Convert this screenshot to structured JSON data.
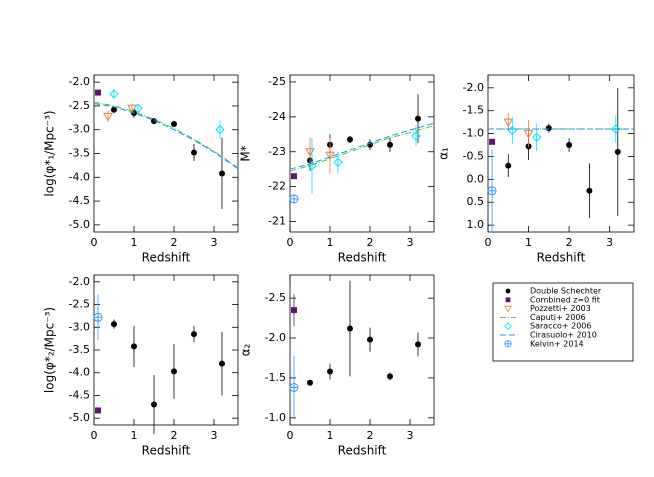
{
  "chart_data": [
    {
      "type": "scatter",
      "xlabel": "Redshift",
      "ylabel": "log(φ*₁/Mpc⁻³)",
      "xlim": [
        0,
        3.6
      ],
      "xticks": [
        0,
        1,
        2,
        3
      ],
      "ylim": [
        -5.15,
        -1.85
      ],
      "yticks": [
        {
          "value": -2,
          "label": "-2.0"
        },
        -2.5,
        {
          "value": -3,
          "label": "-3.0"
        },
        -3.5,
        {
          "value": -4,
          "label": "-4.0"
        },
        -4.5,
        {
          "value": -5,
          "label": "-5.0"
        }
      ],
      "series": [
        {
          "name": "Double Schechter",
          "color": "#000000",
          "marker": "circle",
          "x": [
            0.5,
            1,
            1.5,
            2,
            2.5,
            3.2
          ],
          "values": [
            -2.58,
            -2.65,
            -2.82,
            -2.88,
            -3.48,
            -3.92
          ],
          "errors": [
            0.05,
            0.1,
            0.05,
            0.05,
            0.18,
            0.75
          ]
        },
        {
          "name": "Combined z=0 fit",
          "color": "#5b1a6e",
          "marker": "square",
          "x": [
            0.1
          ],
          "values": [
            -2.22
          ],
          "errors": [
            0.03
          ]
        },
        {
          "name": "Pozzetti+ 2003",
          "color": "#f07f3c",
          "marker": "triangle-down",
          "x": [
            0.35,
            0.95
          ],
          "values": [
            -2.72,
            -2.55
          ],
          "errors": [
            0.12,
            0.1
          ]
        },
        {
          "name": "Caputi+ 2006",
          "color": "#44cc44",
          "marker": "dashdot",
          "x": [
            0,
            0.5,
            1,
            1.5,
            2,
            2.5,
            3,
            3.6
          ],
          "values": [
            -2.42,
            -2.5,
            -2.62,
            -2.78,
            -2.97,
            -3.2,
            -3.45,
            -3.8
          ]
        },
        {
          "name": "Saracco+ 2006",
          "color": "#00e5ff",
          "marker": "diamond",
          "x": [
            0.5,
            1.1,
            3.15
          ],
          "values": [
            -2.25,
            -2.55,
            -3.0
          ],
          "errors": [
            0.1,
            0.05,
            0.2
          ]
        },
        {
          "name": "Cirasuolo+ 2010",
          "color": "#1e90ff",
          "marker": "dashed",
          "x": [
            0,
            0.5,
            1,
            1.5,
            2,
            2.5,
            3,
            3.6
          ],
          "values": [
            -2.45,
            -2.52,
            -2.65,
            -2.8,
            -3.0,
            -3.22,
            -3.47,
            -3.82
          ]
        }
      ]
    },
    {
      "type": "scatter",
      "xlabel": "Redshift",
      "ylabel": "M*",
      "xlim": [
        0,
        3.6
      ],
      "xticks": [
        0,
        1,
        2,
        3
      ],
      "ylim": [
        -20.7,
        -25.2
      ],
      "yticks": [
        -25,
        -24,
        -23,
        -22,
        -21
      ],
      "series": [
        {
          "name": "Double Schechter",
          "color": "#000000",
          "marker": "circle",
          "x": [
            0.5,
            1,
            1.5,
            2,
            2.5,
            3.2
          ],
          "values": [
            -22.75,
            -23.2,
            -23.35,
            -23.2,
            -23.2,
            -23.95
          ],
          "errors": [
            0.3,
            0.3,
            0.1,
            0.15,
            0.2,
            0.7
          ]
        },
        {
          "name": "Combined z=0 fit",
          "color": "#5b1a6e",
          "marker": "square",
          "x": [
            0.1
          ],
          "values": [
            -22.3
          ],
          "errors": [
            0.05
          ]
        },
        {
          "name": "Pozzetti+ 2003",
          "color": "#f07f3c",
          "marker": "triangle-down",
          "x": [
            0.5,
            1.0
          ],
          "values": [
            -23.0,
            -22.9
          ],
          "errors": [
            0.4,
            0.5
          ]
        },
        {
          "name": "Caputi+ 2006",
          "color": "#44cc44",
          "marker": "dashdot",
          "x": [
            0,
            0.5,
            1,
            1.5,
            2,
            2.5,
            3,
            3.6
          ],
          "values": [
            -22.45,
            -22.6,
            -22.8,
            -23.0,
            -23.2,
            -23.4,
            -23.55,
            -23.75
          ]
        },
        {
          "name": "Saracco+ 2006",
          "color": "#00e5ff",
          "marker": "diamond",
          "x": [
            0.55,
            1.2,
            3.15
          ],
          "values": [
            -22.6,
            -22.7,
            -23.45
          ],
          "errors": [
            0.8,
            0.3,
            0.3
          ]
        },
        {
          "name": "Cirasuolo+ 2010",
          "color": "#1e90ff",
          "marker": "dashed",
          "x": [
            0,
            0.5,
            1,
            1.5,
            2,
            2.5,
            3,
            3.6
          ],
          "values": [
            -22.5,
            -22.65,
            -22.85,
            -23.05,
            -23.25,
            -23.45,
            -23.62,
            -23.82
          ]
        },
        {
          "name": "Kelvin+ 2014",
          "color": "#3399ff",
          "marker": "circle-cross",
          "x": [
            0.1
          ],
          "values": [
            -21.65
          ],
          "errors": [
            0.1
          ]
        }
      ]
    },
    {
      "type": "scatter",
      "xlabel": "Redshift",
      "ylabel": "α₁",
      "xlim": [
        0,
        3.6
      ],
      "xticks": [
        0,
        1,
        2,
        3
      ],
      "ylim": [
        1.15,
        -2.28
      ],
      "yticks": [
        {
          "value": -2,
          "label": "-2.0"
        },
        -1.5,
        {
          "value": -1,
          "label": "-1.0"
        },
        -0.5,
        {
          "value": 0,
          "label": "0.0"
        },
        0.5,
        {
          "value": 1,
          "label": "1.0"
        }
      ],
      "series": [
        {
          "name": "Double Schechter",
          "color": "#000000",
          "marker": "circle",
          "x": [
            0.5,
            1,
            1.5,
            2,
            2.5,
            3.2
          ],
          "values": [
            -0.3,
            -0.72,
            -1.12,
            -0.75,
            0.25,
            -0.6
          ],
          "errors": [
            0.25,
            0.3,
            0.1,
            0.15,
            0.6,
            1.4
          ]
        },
        {
          "name": "Combined z=0 fit",
          "color": "#5b1a6e",
          "marker": "square",
          "x": [
            0.1
          ],
          "values": [
            -0.82
          ],
          "errors": [
            0.05
          ]
        },
        {
          "name": "Pozzetti+ 2003",
          "color": "#f07f3c",
          "marker": "triangle-down",
          "x": [
            0.5,
            1.0
          ],
          "values": [
            -1.25,
            -1.0
          ],
          "errors": [
            0.2,
            0.3
          ]
        },
        {
          "name": "Caputi+ 2006",
          "color": "#44cc44",
          "marker": "dashdot",
          "x": [
            0,
            3.6
          ],
          "values": [
            -1.1,
            -1.1
          ]
        },
        {
          "name": "Saracco+ 2006",
          "color": "#00e5ff",
          "marker": "diamond",
          "x": [
            0.6,
            1.2,
            3.15
          ],
          "values": [
            -1.07,
            -0.92,
            -1.1
          ],
          "errors": [
            0.3,
            0.3,
            0.3
          ]
        },
        {
          "name": "Cirasuolo+ 2010",
          "color": "#1e90ff",
          "marker": "dashed",
          "x": [
            0,
            3.6
          ],
          "values": [
            -1.1,
            -1.1
          ]
        },
        {
          "name": "Kelvin+ 2014",
          "color": "#3399ff",
          "marker": "circle-cross",
          "x": [
            0.1
          ],
          "values": [
            0.25
          ],
          "errors": [
            0.9
          ]
        }
      ]
    },
    {
      "type": "scatter",
      "xlabel": "Redshift",
      "ylabel": "log(φ*₂/Mpc⁻³)",
      "xlim": [
        0,
        3.6
      ],
      "xticks": [
        0,
        1,
        2,
        3
      ],
      "ylim": [
        -5.15,
        -1.85
      ],
      "yticks": [
        {
          "value": -2,
          "label": "-2.0"
        },
        -2.5,
        {
          "value": -3,
          "label": "-3.0"
        },
        -3.5,
        {
          "value": -4,
          "label": "-4.0"
        },
        -4.5,
        {
          "value": -5,
          "label": "-5.0"
        }
      ],
      "series": [
        {
          "name": "Double Schechter",
          "color": "#000000",
          "marker": "circle",
          "x": [
            0.5,
            1,
            1.5,
            2,
            2.5,
            3.2
          ],
          "values": [
            -2.93,
            -3.42,
            -4.7,
            -3.97,
            -3.15,
            -3.8
          ],
          "errors": [
            0.1,
            0.45,
            0.65,
            0.6,
            0.18,
            0.7
          ]
        },
        {
          "name": "Combined z=0 fit",
          "color": "#5b1a6e",
          "marker": "square",
          "x": [
            0.1
          ],
          "values": [
            -4.83
          ],
          "errors": [
            0.05
          ]
        },
        {
          "name": "Kelvin+ 2014",
          "color": "#3399ff",
          "marker": "circle-cross",
          "x": [
            0.1
          ],
          "values": [
            -2.78
          ],
          "errors": [
            0.5
          ]
        }
      ]
    },
    {
      "type": "scatter",
      "xlabel": "Redshift",
      "ylabel": "α₂",
      "xlim": [
        0,
        3.6
      ],
      "xticks": [
        0,
        1,
        2,
        3
      ],
      "ylim": [
        -0.91,
        -2.79
      ],
      "yticks": [
        -2.5,
        {
          "value": -2,
          "label": "-2.0"
        },
        -1.5,
        {
          "value": -1,
          "label": "-1.0"
        }
      ],
      "series": [
        {
          "name": "Double Schechter",
          "color": "#000000",
          "marker": "circle",
          "x": [
            0.5,
            1,
            1.5,
            2,
            2.5,
            3.2
          ],
          "values": [
            -1.44,
            -1.58,
            -2.12,
            -1.98,
            -1.52,
            -1.92
          ],
          "errors": [
            0.03,
            0.1,
            0.6,
            0.15,
            0.05,
            0.15
          ]
        },
        {
          "name": "Combined z=0 fit",
          "color": "#5b1a6e",
          "marker": "square",
          "x": [
            0.1
          ],
          "values": [
            -2.35
          ],
          "errors": [
            0.2
          ]
        },
        {
          "name": "Kelvin+ 2014",
          "color": "#3399ff",
          "marker": "circle-cross",
          "x": [
            0.1
          ],
          "values": [
            -1.38
          ],
          "errors": [
            0.4
          ]
        }
      ]
    }
  ]
}
